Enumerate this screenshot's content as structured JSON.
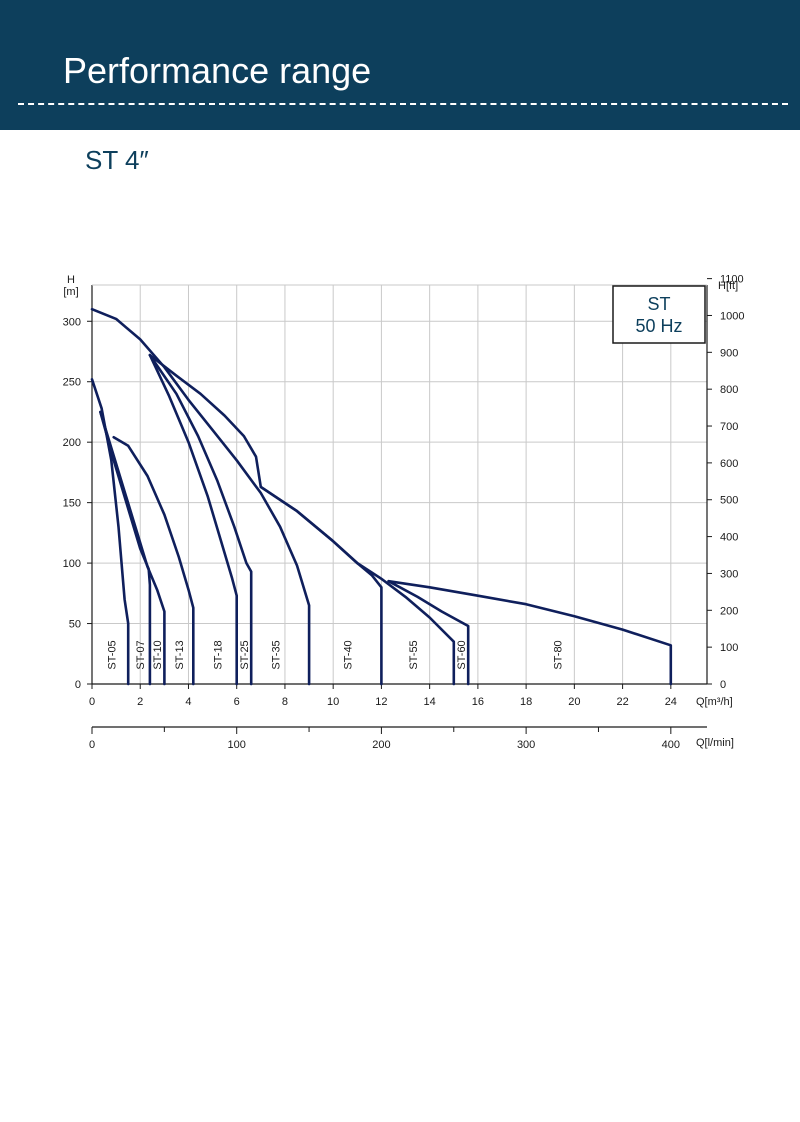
{
  "header": {
    "title": "Performance range"
  },
  "subtitle": "ST 4″",
  "chart_data": {
    "type": "line",
    "legend_box": {
      "line1": "ST",
      "line2": "50 Hz"
    },
    "left_axis": {
      "label_top": "H",
      "label_unit": "[m]",
      "range": [
        0,
        330
      ],
      "ticks": [
        0,
        50,
        100,
        150,
        200,
        250,
        300
      ]
    },
    "right_axis": {
      "label": "H[ft]",
      "ticks": [
        0,
        100,
        200,
        300,
        400,
        500,
        600,
        700,
        800,
        900,
        1000,
        1100
      ]
    },
    "x_axis": {
      "label": "Q[m³/h]",
      "range": [
        0,
        25.5
      ],
      "ticks": [
        0,
        2,
        4,
        6,
        8,
        10,
        12,
        14,
        16,
        18,
        20,
        22,
        24
      ]
    },
    "x_axis_secondary": {
      "label": "Q[l/min]",
      "major_ticks": [
        0,
        100,
        200,
        300,
        400
      ],
      "minor_ticks": [
        50,
        150,
        250,
        350
      ]
    },
    "grid": true,
    "series": [
      {
        "name": "ST-05",
        "label_q": 0.8,
        "points": [
          [
            0,
            252
          ],
          [
            0.4,
            228
          ],
          [
            0.8,
            185
          ],
          [
            1.1,
            130
          ],
          [
            1.35,
            70
          ],
          [
            1.5,
            50
          ],
          [
            1.5,
            0
          ]
        ]
      },
      {
        "name": "ST-07",
        "label_q": 2.0,
        "points": [
          [
            0.35,
            225
          ],
          [
            0.9,
            185
          ],
          [
            1.5,
            145
          ],
          [
            2.0,
            112
          ],
          [
            2.35,
            95
          ],
          [
            2.4,
            82
          ],
          [
            2.4,
            0
          ]
        ]
      },
      {
        "name": "ST-10",
        "label_q": 2.7,
        "points": [
          [
            0.35,
            225
          ],
          [
            2.3,
            97
          ],
          [
            2.7,
            78
          ],
          [
            3.0,
            60
          ],
          [
            3.0,
            0
          ]
        ]
      },
      {
        "name": "ST-13",
        "label_q": 3.6,
        "points": [
          [
            0.9,
            204
          ],
          [
            1.5,
            197
          ],
          [
            2.3,
            172
          ],
          [
            3.0,
            140
          ],
          [
            3.6,
            105
          ],
          [
            4.0,
            78
          ],
          [
            4.2,
            63
          ],
          [
            4.2,
            0
          ]
        ]
      },
      {
        "name": "ST-18",
        "label_q": 5.2,
        "points": [
          [
            2.4,
            272
          ],
          [
            3.2,
            238
          ],
          [
            4.0,
            200
          ],
          [
            4.8,
            155
          ],
          [
            5.4,
            115
          ],
          [
            5.8,
            88
          ],
          [
            6.0,
            73
          ],
          [
            6.0,
            0
          ]
        ]
      },
      {
        "name": "ST-25",
        "label_q": 6.3,
        "points": [
          [
            2.4,
            272
          ],
          [
            3.5,
            240
          ],
          [
            4.4,
            205
          ],
          [
            5.2,
            168
          ],
          [
            5.9,
            130
          ],
          [
            6.4,
            100
          ],
          [
            6.6,
            93
          ],
          [
            6.6,
            0
          ]
        ]
      },
      {
        "name": "ST-35",
        "label_q": 7.6,
        "points": [
          [
            0,
            310
          ],
          [
            1,
            302
          ],
          [
            2,
            285
          ],
          [
            3,
            262
          ],
          [
            4,
            235
          ],
          [
            5,
            210
          ],
          [
            6,
            185
          ],
          [
            7,
            158
          ],
          [
            7.8,
            130
          ],
          [
            8.5,
            98
          ],
          [
            9,
            65
          ],
          [
            9,
            0
          ]
        ]
      },
      {
        "name": "ST-40",
        "label_q": 10.6,
        "points": [
          [
            2.4,
            272
          ],
          [
            3.5,
            255
          ],
          [
            4.5,
            240
          ],
          [
            5.5,
            222
          ],
          [
            6.3,
            205
          ],
          [
            6.8,
            188
          ],
          [
            7.0,
            163
          ],
          [
            8.5,
            143
          ],
          [
            10,
            118
          ],
          [
            11,
            100
          ],
          [
            11.6,
            90
          ],
          [
            12,
            80
          ],
          [
            12,
            0
          ]
        ]
      },
      {
        "name": "ST-55",
        "label_q": 13.3,
        "points": [
          [
            7.0,
            163
          ],
          [
            8.5,
            143
          ],
          [
            10,
            118
          ],
          [
            11,
            100
          ],
          [
            12,
            87
          ],
          [
            13,
            72
          ],
          [
            14,
            55
          ],
          [
            15,
            35
          ],
          [
            15,
            0
          ]
        ]
      },
      {
        "name": "ST-60",
        "label_q": 15.3,
        "points": [
          [
            12.3,
            85
          ],
          [
            13.5,
            72
          ],
          [
            14.5,
            60
          ],
          [
            15.6,
            48
          ],
          [
            15.6,
            0
          ]
        ]
      },
      {
        "name": "ST-80",
        "label_q": 19.3,
        "points": [
          [
            12.3,
            85
          ],
          [
            14,
            80
          ],
          [
            16,
            73
          ],
          [
            18,
            66
          ],
          [
            20,
            56
          ],
          [
            22,
            45
          ],
          [
            24,
            32
          ],
          [
            24,
            0
          ]
        ]
      }
    ]
  },
  "colors": {
    "header_bg": "#0d3f5c",
    "curve": "#0f1f5c",
    "grid": "#c9c9c9",
    "axis": "#1a1a1a"
  }
}
